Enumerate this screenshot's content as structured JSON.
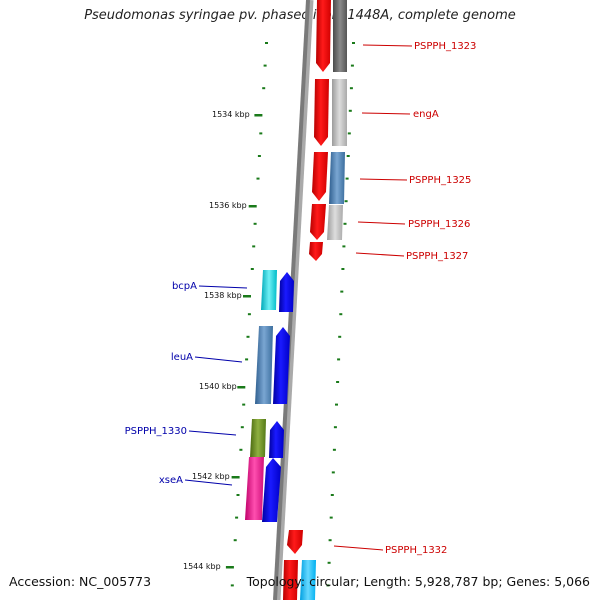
{
  "title": "Pseudomonas syringae pv. phaseolicola 1448A, complete genome",
  "footer": {
    "accession": "Accession: NC_005773",
    "stats": "Topology: circular; Length: 5,928,787 bp; Genes: 5,066"
  },
  "axis_labels": [
    "1534 kbp",
    "1536 kbp",
    "1538 kbp",
    "1540 kbp",
    "1542 kbp",
    "1544 kbp"
  ],
  "genes": {
    "reverse_strand": [
      "PSPPH_1323",
      "engA",
      "PSPPH_1325",
      "PSPPH_1326",
      "PSPPH_1327",
      "PSPPH_1332"
    ],
    "forward_strand": [
      "bcpA",
      "leuA",
      "PSPPH_1330",
      "xseA"
    ]
  },
  "colors": {
    "reverse_label": "#cc0000",
    "forward_label": "#0000aa",
    "reverse_gene": "#ff0000",
    "forward_gene": "#0000ff",
    "tick": "#1a7a1a"
  }
}
